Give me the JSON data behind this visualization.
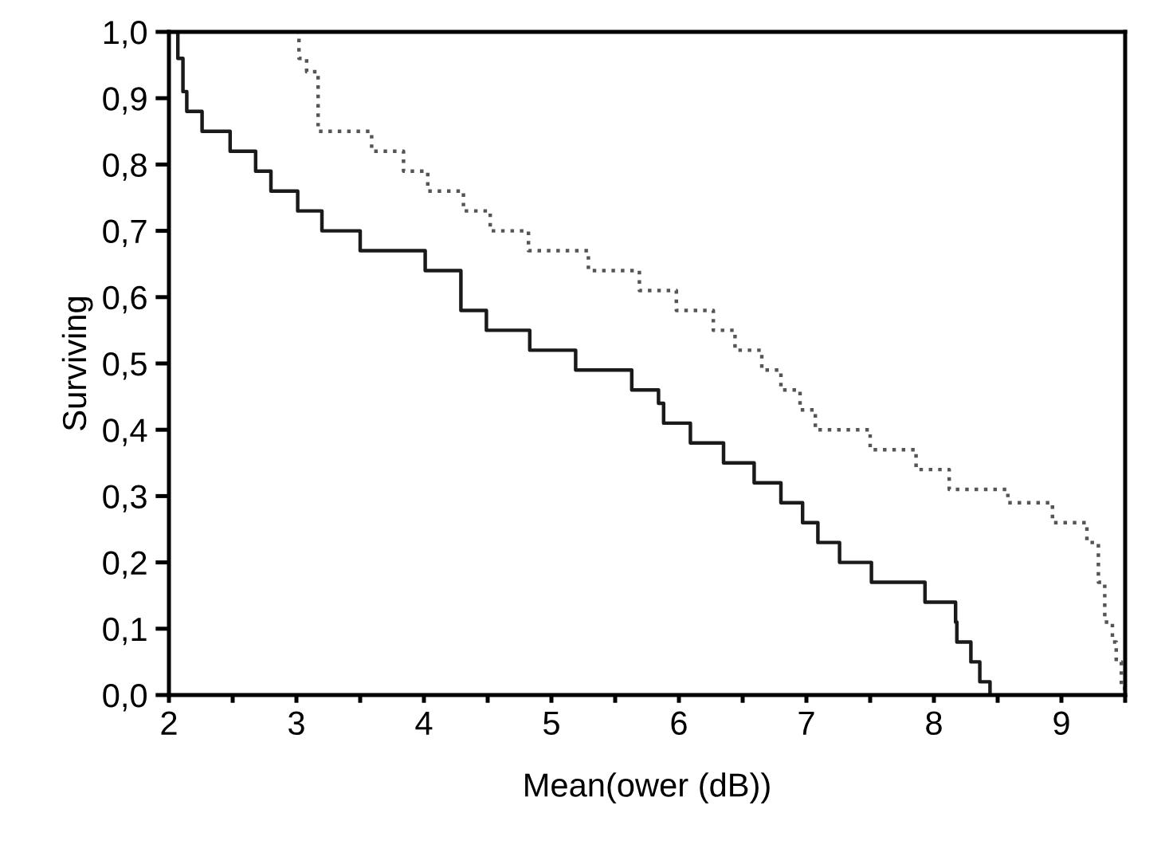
{
  "chart_data": {
    "type": "step",
    "xlabel": "Mean(ower (dB))",
    "ylabel": "Surviving",
    "xlim": [
      2,
      9.5
    ],
    "xticks": [
      2,
      {
        "value": 2.5,
        "label": null
      },
      3,
      {
        "value": 3.5,
        "label": null
      },
      4,
      {
        "value": 4.5,
        "label": null
      },
      5,
      {
        "value": 5.5,
        "label": null
      },
      6,
      {
        "value": 6.5,
        "label": null
      },
      7,
      {
        "value": 7.5,
        "label": null
      },
      8,
      {
        "value": 8.5,
        "label": null
      },
      9,
      {
        "value": 9.5,
        "label": null
      }
    ],
    "ylim": [
      0,
      1
    ],
    "yticks": [
      {
        "value": 0,
        "label": "0,0"
      },
      {
        "value": 0.1,
        "label": "0,1"
      },
      {
        "value": 0.2,
        "label": "0,2"
      },
      {
        "value": 0.3,
        "label": "0,3"
      },
      {
        "value": 0.4,
        "label": "0,4"
      },
      {
        "value": 0.5,
        "label": "0,5"
      },
      {
        "value": 0.6,
        "label": "0,6"
      },
      {
        "value": 0.7,
        "label": "0,7"
      },
      {
        "value": 0.8,
        "label": "0,8"
      },
      {
        "value": 0.9,
        "label": "0,9"
      },
      {
        "value": 1,
        "label": "1,0"
      }
    ],
    "grid": false,
    "series": [
      {
        "color": "#1a1a1a",
        "line_style": "solid",
        "x": [
          2.0,
          2.07,
          2.11,
          2.14,
          2.26,
          2.48,
          2.68,
          2.8,
          3.01,
          3.2,
          3.5,
          4.01,
          4.29,
          4.49,
          4.83,
          5.19,
          5.63,
          5.84,
          5.88,
          6.09,
          6.35,
          6.59,
          6.8,
          6.97,
          7.09,
          7.26,
          7.51,
          7.93,
          8.17,
          8.18,
          8.29,
          8.36,
          8.44
        ],
        "values": [
          1.0,
          0.96,
          0.91,
          0.88,
          0.85,
          0.82,
          0.79,
          0.76,
          0.73,
          0.7,
          0.67,
          0.64,
          0.58,
          0.55,
          0.52,
          0.49,
          0.46,
          0.44,
          0.41,
          0.38,
          0.35,
          0.32,
          0.29,
          0.26,
          0.23,
          0.2,
          0.17,
          0.14,
          0.11,
          0.08,
          0.05,
          0.02,
          0.0
        ]
      },
      {
        "color": "#555555",
        "line_style": "dotted",
        "x": [
          3.0,
          3.02,
          3.08,
          3.17,
          3.59,
          3.84,
          4.03,
          4.31,
          4.52,
          4.82,
          5.29,
          5.69,
          5.98,
          6.27,
          6.44,
          6.65,
          6.8,
          6.95,
          7.07,
          7.5,
          7.86,
          8.12,
          8.58,
          8.93,
          9.2,
          9.29,
          9.34,
          9.4,
          9.43,
          9.47,
          9.5
        ],
        "values": [
          1.0,
          0.96,
          0.94,
          0.85,
          0.82,
          0.79,
          0.76,
          0.73,
          0.7,
          0.67,
          0.64,
          0.61,
          0.58,
          0.55,
          0.52,
          0.49,
          0.46,
          0.43,
          0.4,
          0.37,
          0.34,
          0.31,
          0.29,
          0.26,
          0.23,
          0.17,
          0.11,
          0.08,
          0.05,
          0.01,
          0.0
        ]
      }
    ]
  }
}
